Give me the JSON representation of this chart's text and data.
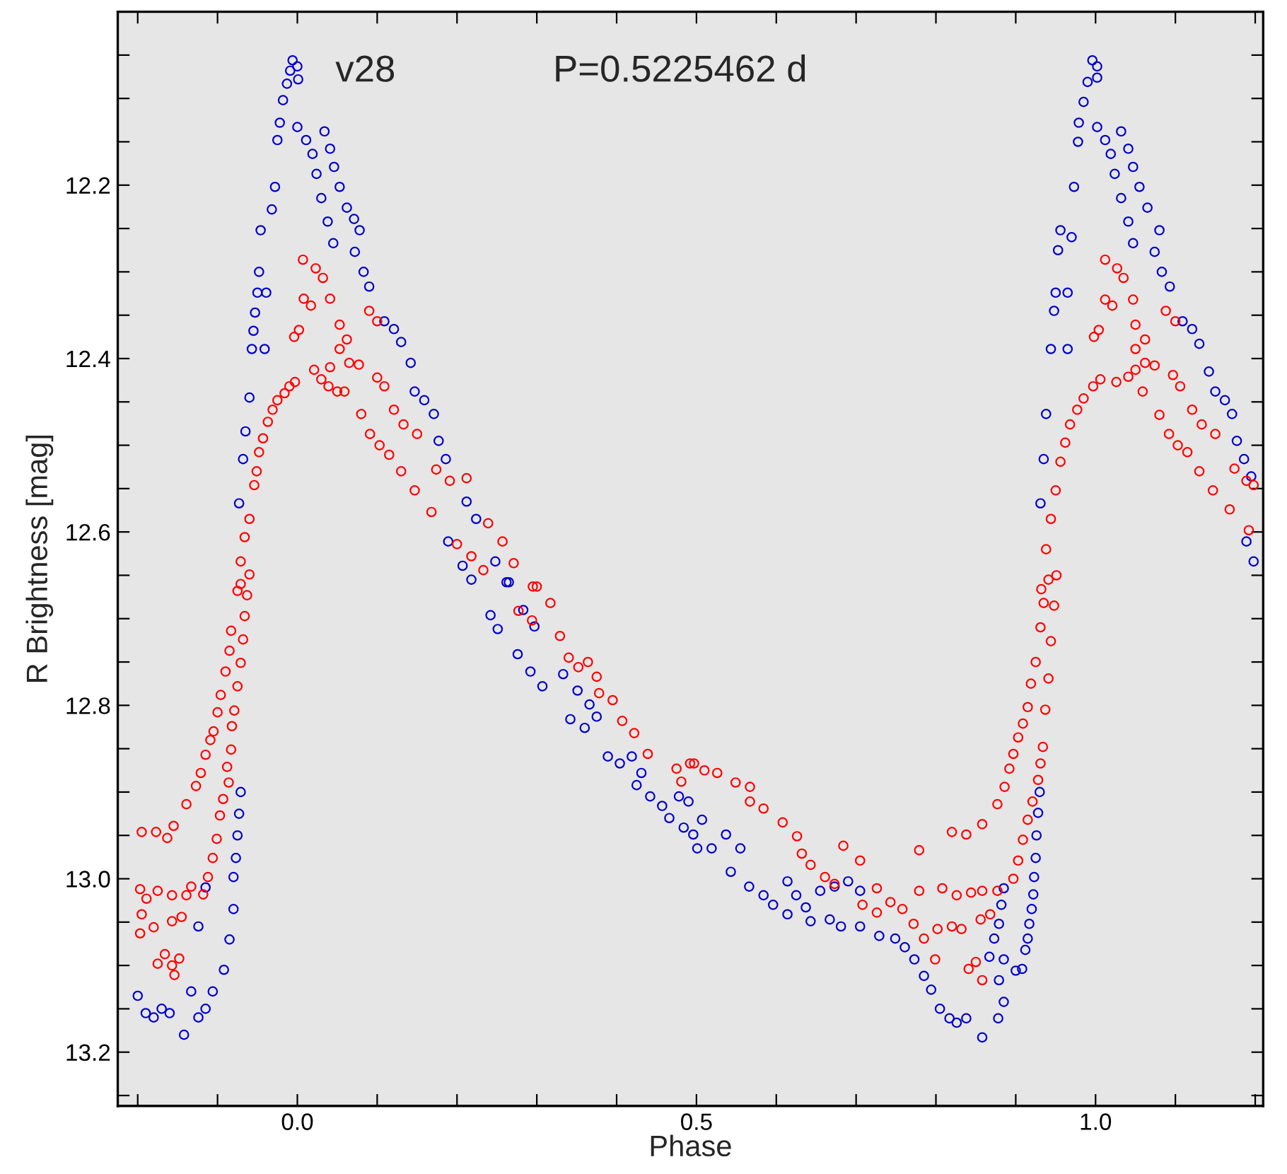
{
  "chart_data": {
    "type": "scatter",
    "xlabel": "Phase",
    "ylabel": "R Brightness [mag]",
    "annotations": [
      "v28",
      "P=0.5225462 d"
    ],
    "xlim": [
      -0.225,
      1.21
    ],
    "ylim": [
      13.262,
      12.0
    ],
    "xticks": [
      {
        "value": -0.2,
        "label": null
      },
      {
        "value": -0.1,
        "label": null
      },
      {
        "value": 0.0,
        "label": "0.0"
      },
      {
        "value": 0.1,
        "label": null
      },
      {
        "value": 0.2,
        "label": null
      },
      {
        "value": 0.3,
        "label": null
      },
      {
        "value": 0.4,
        "label": null
      },
      {
        "value": 0.5,
        "label": "0.5"
      },
      {
        "value": 0.6,
        "label": null
      },
      {
        "value": 0.7,
        "label": null
      },
      {
        "value": 0.8,
        "label": null
      },
      {
        "value": 0.9,
        "label": null
      },
      {
        "value": 1.0,
        "label": "1.0"
      },
      {
        "value": 1.1,
        "label": null
      },
      {
        "value": 1.2,
        "label": null
      }
    ],
    "yticks": [
      {
        "value": 12.05,
        "label": null
      },
      {
        "value": 12.1,
        "label": null
      },
      {
        "value": 12.15,
        "label": null
      },
      {
        "value": 12.2,
        "label": "12.2"
      },
      {
        "value": 12.25,
        "label": null
      },
      {
        "value": 12.3,
        "label": null
      },
      {
        "value": 12.35,
        "label": null
      },
      {
        "value": 12.4,
        "label": "12.4"
      },
      {
        "value": 12.45,
        "label": null
      },
      {
        "value": 12.5,
        "label": null
      },
      {
        "value": 12.55,
        "label": null
      },
      {
        "value": 12.6,
        "label": "12.6"
      },
      {
        "value": 12.65,
        "label": null
      },
      {
        "value": 12.7,
        "label": null
      },
      {
        "value": 12.75,
        "label": null
      },
      {
        "value": 12.8,
        "label": "12.8"
      },
      {
        "value": 12.85,
        "label": null
      },
      {
        "value": 12.9,
        "label": null
      },
      {
        "value": 12.95,
        "label": null
      },
      {
        "value": 13.0,
        "label": "13.0"
      },
      {
        "value": 13.05,
        "label": null
      },
      {
        "value": 13.1,
        "label": null
      },
      {
        "value": 13.15,
        "label": null
      },
      {
        "value": 13.2,
        "label": "13.2"
      },
      {
        "value": 13.25,
        "label": null
      }
    ],
    "grid": false,
    "legend": false,
    "marker": "circle",
    "series": [
      {
        "color": "#0000cc",
        "x": [
          -0.2,
          -0.19,
          -0.18,
          -0.17,
          -0.16,
          -0.142,
          -0.124,
          -0.115,
          -0.106,
          -0.092,
          -0.133,
          -0.124,
          -0.115,
          -0.085,
          -0.08,
          -0.08,
          -0.077,
          -0.075,
          -0.073,
          -0.071,
          -0.073,
          -0.068,
          -0.065,
          -0.06,
          -0.057,
          -0.055,
          -0.053,
          -0.05,
          -0.048,
          -0.046,
          -0.041,
          -0.039,
          -0.032,
          -0.028,
          -0.025,
          -0.022,
          -0.018,
          -0.013,
          -0.009,
          -0.006,
          0.0,
          0.001,
          0.0,
          0.011,
          0.019,
          0.034,
          0.041,
          0.024,
          0.03,
          0.038,
          0.045,
          0.046,
          0.053,
          0.062,
          0.071,
          0.078,
          0.072,
          0.083,
          0.09,
          0.109,
          0.121,
          0.13,
          0.142,
          0.147,
          0.159,
          0.171,
          0.177,
          0.186,
          0.212,
          0.224,
          0.189,
          0.207,
          0.218,
          0.248,
          0.265,
          0.242,
          0.251,
          0.262,
          0.276,
          0.292,
          0.307,
          0.283,
          0.297,
          0.333,
          0.351,
          0.366,
          0.375,
          0.342,
          0.36,
          0.389,
          0.404,
          0.419,
          0.431,
          0.425,
          0.442,
          0.457,
          0.466,
          0.478,
          0.484,
          0.501,
          0.49,
          0.507,
          0.496,
          0.519,
          0.537,
          0.555,
          0.543,
          0.566,
          0.584,
          0.596,
          0.614,
          0.614,
          0.625,
          0.637,
          0.655,
          0.673,
          0.643,
          0.667,
          0.681,
          0.69,
          0.705,
          0.705,
          0.729,
          0.749,
          0.761,
          0.773,
          0.785,
          0.794,
          0.805,
          0.817,
          0.826,
          0.838,
          0.858,
          0.878,
          0.885,
          0.879,
          0.885,
          0.9,
          0.908,
          0.912,
          0.915,
          0.867,
          0.873,
          0.879,
          0.882,
          0.885,
          0.917,
          0.92,
          0.922,
          0.923,
          0.925,
          0.926,
          0.928,
          0.93,
          0.931,
          0.935,
          0.938,
          0.944,
          0.948,
          0.95,
          0.953,
          0.956,
          0.965,
          0.965,
          0.97,
          0.973,
          0.978,
          0.979,
          0.985,
          0.99,
          0.996,
          1.002,
          1.002,
          1.002,
          1.012,
          1.019,
          1.032,
          1.041,
          1.024,
          1.032,
          1.041,
          1.047,
          1.047,
          1.055,
          1.065,
          1.08,
          1.074,
          1.083,
          1.093,
          1.109,
          1.121,
          1.13,
          1.142,
          1.15,
          1.162,
          1.171,
          1.177,
          1.186,
          1.195,
          1.189,
          1.198
        ],
        "values": [
          13.135,
          13.155,
          13.16,
          13.15,
          13.155,
          13.18,
          13.16,
          13.15,
          13.13,
          13.105,
          13.13,
          13.055,
          13.01,
          13.07,
          13.035,
          12.998,
          12.976,
          12.95,
          12.925,
          12.9,
          12.567,
          12.516,
          12.484,
          12.445,
          12.389,
          12.368,
          12.347,
          12.324,
          12.3,
          12.252,
          12.389,
          12.324,
          12.228,
          12.202,
          12.148,
          12.128,
          12.102,
          12.083,
          12.068,
          12.056,
          12.063,
          12.078,
          12.133,
          12.148,
          12.164,
          12.138,
          12.158,
          12.187,
          12.215,
          12.242,
          12.267,
          12.179,
          12.202,
          12.226,
          12.239,
          12.252,
          12.277,
          12.3,
          12.317,
          12.357,
          12.366,
          12.381,
          12.405,
          12.438,
          12.448,
          12.464,
          12.495,
          12.516,
          12.565,
          12.585,
          12.611,
          12.639,
          12.655,
          12.634,
          12.658,
          12.696,
          12.712,
          12.658,
          12.741,
          12.761,
          12.778,
          12.69,
          12.709,
          12.764,
          12.783,
          12.799,
          12.813,
          12.816,
          12.826,
          12.859,
          12.867,
          12.859,
          12.878,
          12.892,
          12.905,
          12.916,
          12.93,
          12.905,
          12.941,
          12.965,
          12.911,
          12.932,
          12.949,
          12.965,
          12.949,
          12.965,
          12.992,
          13.009,
          13.019,
          13.03,
          13.041,
          13.003,
          13.019,
          13.033,
          13.014,
          13.009,
          13.049,
          13.047,
          13.055,
          13.003,
          13.014,
          13.055,
          13.066,
          13.069,
          13.079,
          13.093,
          13.112,
          13.128,
          13.15,
          13.161,
          13.166,
          13.161,
          13.183,
          13.161,
          13.142,
          13.117,
          13.093,
          13.106,
          13.104,
          13.082,
          13.069,
          13.09,
          13.069,
          13.052,
          13.03,
          13.011,
          13.052,
          13.035,
          13.018,
          12.998,
          12.976,
          12.95,
          12.924,
          12.9,
          12.567,
          12.516,
          12.464,
          12.389,
          12.345,
          12.324,
          12.275,
          12.252,
          12.324,
          12.389,
          12.26,
          12.202,
          12.15,
          12.128,
          12.104,
          12.081,
          12.056,
          12.063,
          12.076,
          12.133,
          12.148,
          12.164,
          12.138,
          12.158,
          12.187,
          12.215,
          12.242,
          12.267,
          12.179,
          12.202,
          12.226,
          12.252,
          12.277,
          12.3,
          12.317,
          12.357,
          12.366,
          12.383,
          12.415,
          12.438,
          12.448,
          12.464,
          12.495,
          12.516,
          12.536,
          12.611,
          12.634
        ]
      },
      {
        "color": "#ff0000",
        "x": [
          -0.195,
          -0.177,
          -0.163,
          -0.155,
          -0.197,
          -0.189,
          -0.175,
          -0.157,
          -0.139,
          -0.133,
          -0.197,
          -0.195,
          -0.18,
          -0.157,
          -0.145,
          -0.175,
          -0.166,
          -0.157,
          -0.154,
          -0.148,
          -0.139,
          -0.127,
          -0.121,
          -0.115,
          -0.109,
          -0.105,
          -0.1,
          -0.096,
          -0.09,
          -0.085,
          -0.083,
          -0.118,
          -0.112,
          -0.106,
          -0.101,
          -0.097,
          -0.093,
          -0.086,
          -0.088,
          -0.083,
          -0.082,
          -0.079,
          -0.075,
          -0.071,
          -0.068,
          -0.066,
          -0.063,
          -0.06,
          -0.071,
          -0.075,
          -0.071,
          -0.066,
          -0.06,
          -0.054,
          -0.051,
          -0.048,
          -0.043,
          -0.037,
          -0.031,
          -0.025,
          -0.016,
          -0.01,
          -0.003,
          0.021,
          0.03,
          0.041,
          0.05,
          0.059,
          0.039,
          0.007,
          0.023,
          0.032,
          0.041,
          0.008,
          0.017,
          -0.004,
          0.002,
          0.053,
          0.062,
          0.053,
          0.065,
          0.077,
          0.09,
          0.1,
          0.1,
          0.109,
          0.08,
          0.091,
          0.103,
          0.115,
          0.121,
          0.133,
          0.15,
          0.13,
          0.147,
          0.168,
          0.174,
          0.191,
          0.212,
          0.2,
          0.218,
          0.233,
          0.239,
          0.257,
          0.271,
          0.295,
          0.277,
          0.294,
          0.3,
          0.317,
          0.329,
          0.34,
          0.352,
          0.364,
          0.375,
          0.378,
          0.395,
          0.407,
          0.422,
          0.439,
          0.475,
          0.492,
          0.51,
          0.481,
          0.497,
          0.526,
          0.549,
          0.567,
          0.567,
          0.584,
          0.608,
          0.626,
          0.632,
          0.643,
          0.661,
          0.673,
          0.684,
          0.705,
          0.708,
          0.726,
          0.726,
          0.743,
          0.758,
          0.772,
          0.785,
          0.799,
          0.779,
          0.779,
          0.808,
          0.802,
          0.82,
          0.832,
          0.826,
          0.844,
          0.858,
          0.82,
          0.838,
          0.858,
          0.841,
          0.85,
          0.858,
          0.856,
          0.868,
          0.877,
          0.877,
          0.886,
          0.892,
          0.897,
          0.903,
          0.909,
          0.915,
          0.919,
          0.925,
          0.931,
          0.935,
          0.941,
          0.897,
          0.903,
          0.909,
          0.915,
          0.921,
          0.928,
          0.931,
          0.934,
          0.937,
          0.941,
          0.944,
          0.948,
          0.951,
          0.932,
          0.938,
          0.944,
          0.95,
          0.956,
          0.962,
          0.968,
          0.977,
          0.985,
          0.997,
          1.006,
          1.026,
          1.041,
          1.05,
          1.059,
          1.012,
          1.027,
          1.035,
          1.047,
          1.012,
          1.021,
          0.998,
          1.004,
          1.05,
          1.062,
          1.05,
          1.062,
          1.074,
          1.088,
          1.1,
          1.097,
          1.106,
          1.08,
          1.092,
          1.103,
          1.115,
          1.121,
          1.133,
          1.15,
          1.13,
          1.147,
          1.168,
          1.174,
          1.189,
          1.198,
          1.192
        ],
        "values": [
          12.946,
          12.946,
          12.953,
          12.939,
          13.012,
          13.023,
          13.014,
          13.019,
          13.019,
          13.009,
          13.063,
          13.041,
          13.056,
          13.049,
          13.044,
          13.098,
          13.087,
          13.1,
          13.111,
          13.092,
          12.914,
          12.893,
          12.878,
          12.857,
          12.84,
          12.83,
          12.808,
          12.788,
          12.761,
          12.737,
          12.714,
          13.018,
          12.998,
          12.976,
          12.954,
          12.927,
          12.908,
          12.889,
          12.871,
          12.851,
          12.824,
          12.806,
          12.778,
          12.751,
          12.724,
          12.697,
          12.673,
          12.649,
          12.66,
          12.668,
          12.634,
          12.606,
          12.585,
          12.546,
          12.53,
          12.508,
          12.492,
          12.473,
          12.459,
          12.448,
          12.44,
          12.432,
          12.427,
          12.413,
          12.424,
          12.41,
          12.438,
          12.438,
          12.432,
          12.286,
          12.296,
          12.307,
          12.331,
          12.331,
          12.339,
          12.375,
          12.367,
          12.361,
          12.378,
          12.389,
          12.405,
          12.407,
          12.345,
          12.357,
          12.422,
          12.432,
          12.464,
          12.487,
          12.5,
          12.511,
          12.459,
          12.476,
          12.487,
          12.53,
          12.552,
          12.577,
          12.528,
          12.541,
          12.538,
          12.614,
          12.628,
          12.644,
          12.59,
          12.611,
          12.636,
          12.663,
          12.691,
          12.702,
          12.663,
          12.682,
          12.72,
          12.745,
          12.756,
          12.75,
          12.767,
          12.786,
          12.794,
          12.818,
          12.832,
          12.856,
          12.873,
          12.867,
          12.875,
          12.888,
          12.867,
          12.878,
          12.889,
          12.894,
          12.911,
          12.919,
          12.935,
          12.951,
          12.971,
          12.984,
          12.998,
          13.006,
          12.962,
          12.979,
          13.03,
          13.039,
          13.011,
          13.027,
          13.035,
          13.052,
          13.069,
          13.093,
          12.967,
          13.014,
          13.011,
          13.058,
          13.055,
          13.058,
          13.019,
          13.016,
          13.014,
          12.946,
          12.949,
          12.937,
          13.104,
          13.096,
          13.117,
          13.047,
          13.041,
          13.014,
          12.914,
          12.894,
          12.873,
          12.856,
          12.837,
          12.821,
          12.802,
          12.775,
          12.75,
          12.71,
          12.682,
          12.655,
          13.0,
          12.979,
          12.955,
          12.932,
          12.911,
          12.886,
          12.867,
          12.848,
          12.805,
          12.769,
          12.726,
          12.685,
          12.65,
          12.666,
          12.62,
          12.585,
          12.552,
          12.519,
          12.497,
          12.476,
          12.459,
          12.446,
          12.432,
          12.424,
          12.427,
          12.421,
          12.413,
          12.438,
          12.286,
          12.296,
          12.307,
          12.332,
          12.332,
          12.339,
          12.375,
          12.367,
          12.361,
          12.378,
          12.389,
          12.405,
          12.408,
          12.345,
          12.357,
          12.419,
          12.432,
          12.465,
          12.487,
          12.5,
          12.508,
          12.459,
          12.476,
          12.487,
          12.53,
          12.552,
          12.574,
          12.527,
          12.541,
          12.546,
          12.598
        ]
      }
    ]
  }
}
